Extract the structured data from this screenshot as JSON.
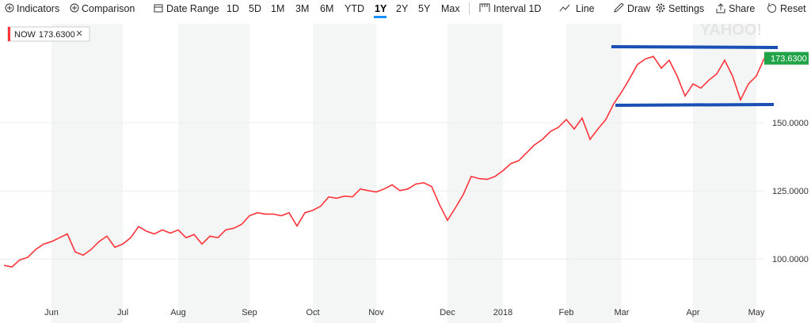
{
  "toolbar": {
    "indicators": "Indicators",
    "comparison": "Comparison",
    "date_range": "Date Range",
    "ranges": [
      "1D",
      "5D",
      "1M",
      "3M",
      "6M",
      "YTD",
      "1Y",
      "2Y",
      "5Y",
      "Max"
    ],
    "interval": "Interval 1D",
    "chart_style": "Line",
    "draw": "Draw",
    "settings": "Settings",
    "share": "Share",
    "reset": "Reset"
  },
  "chart_data": {
    "type": "line",
    "watermark": "YAHOO!",
    "current_price_label": "173.6300",
    "categories": [
      null,
      null,
      null,
      null,
      null,
      null,
      "Jun",
      null,
      null,
      null,
      null,
      null,
      null,
      null,
      null,
      "Jul",
      null,
      null,
      null,
      null,
      null,
      null,
      "Aug",
      null,
      null,
      null,
      null,
      null,
      null,
      null,
      null,
      "Sep",
      null,
      null,
      null,
      null,
      null,
      null,
      null,
      "Oct",
      null,
      null,
      null,
      null,
      null,
      null,
      null,
      "Nov",
      null,
      null,
      null,
      null,
      null,
      null,
      null,
      null,
      "Dec",
      null,
      null,
      null,
      null,
      null,
      null,
      "2018",
      null,
      null,
      null,
      null,
      null,
      null,
      null,
      "Feb",
      null,
      null,
      null,
      null,
      null,
      null,
      "Mar",
      null,
      null,
      null,
      null,
      null,
      null,
      null,
      null,
      "Apr",
      null,
      null,
      null,
      null,
      null,
      null,
      null,
      "May",
      null
    ],
    "series": [
      {
        "name": "NOW",
        "color": "#ff333a",
        "values": [
          97.7,
          97.1,
          99.7,
          100.6,
          103.5,
          105.5,
          106.4,
          107.8,
          109.2,
          102.6,
          101.4,
          103.5,
          106.4,
          108.4,
          104.3,
          105.5,
          107.8,
          111.9,
          110.2,
          109.2,
          110.7,
          109.5,
          110.7,
          107.8,
          109,
          105.5,
          108.4,
          107.8,
          110.7,
          111.3,
          112.7,
          115.9,
          117,
          116.5,
          116.5,
          115.9,
          117,
          112.1,
          117,
          117.9,
          119.4,
          122.8,
          122.3,
          123.1,
          122.8,
          125.7,
          125.1,
          124.6,
          125.7,
          127.2,
          125.1,
          125.7,
          127.5,
          128,
          126.6,
          119.9,
          114.2,
          118.8,
          123.7,
          130.3,
          129.5,
          129.2,
          130.3,
          132.4,
          135,
          136.1,
          139,
          141.9,
          143.9,
          146.8,
          148.3,
          151.2,
          147.7,
          151.7,
          143.9,
          147.7,
          151.2,
          157,
          161.3,
          166.2,
          171.4,
          173.4,
          174.3,
          170,
          172.9,
          167.1,
          159.8,
          164.2,
          162.7,
          165.6,
          167.9,
          172.9,
          167.1,
          158.4,
          164.2,
          167.1,
          173.63
        ]
      }
    ],
    "ylim": [
      83.8,
      186.3
    ],
    "yticks": [
      {
        "value": 100,
        "label": "100.0000"
      },
      {
        "value": 125,
        "label": "125.0000"
      },
      {
        "value": 150,
        "label": "150.0000"
      }
    ],
    "grid": true,
    "flag_color": "#21a347"
  }
}
